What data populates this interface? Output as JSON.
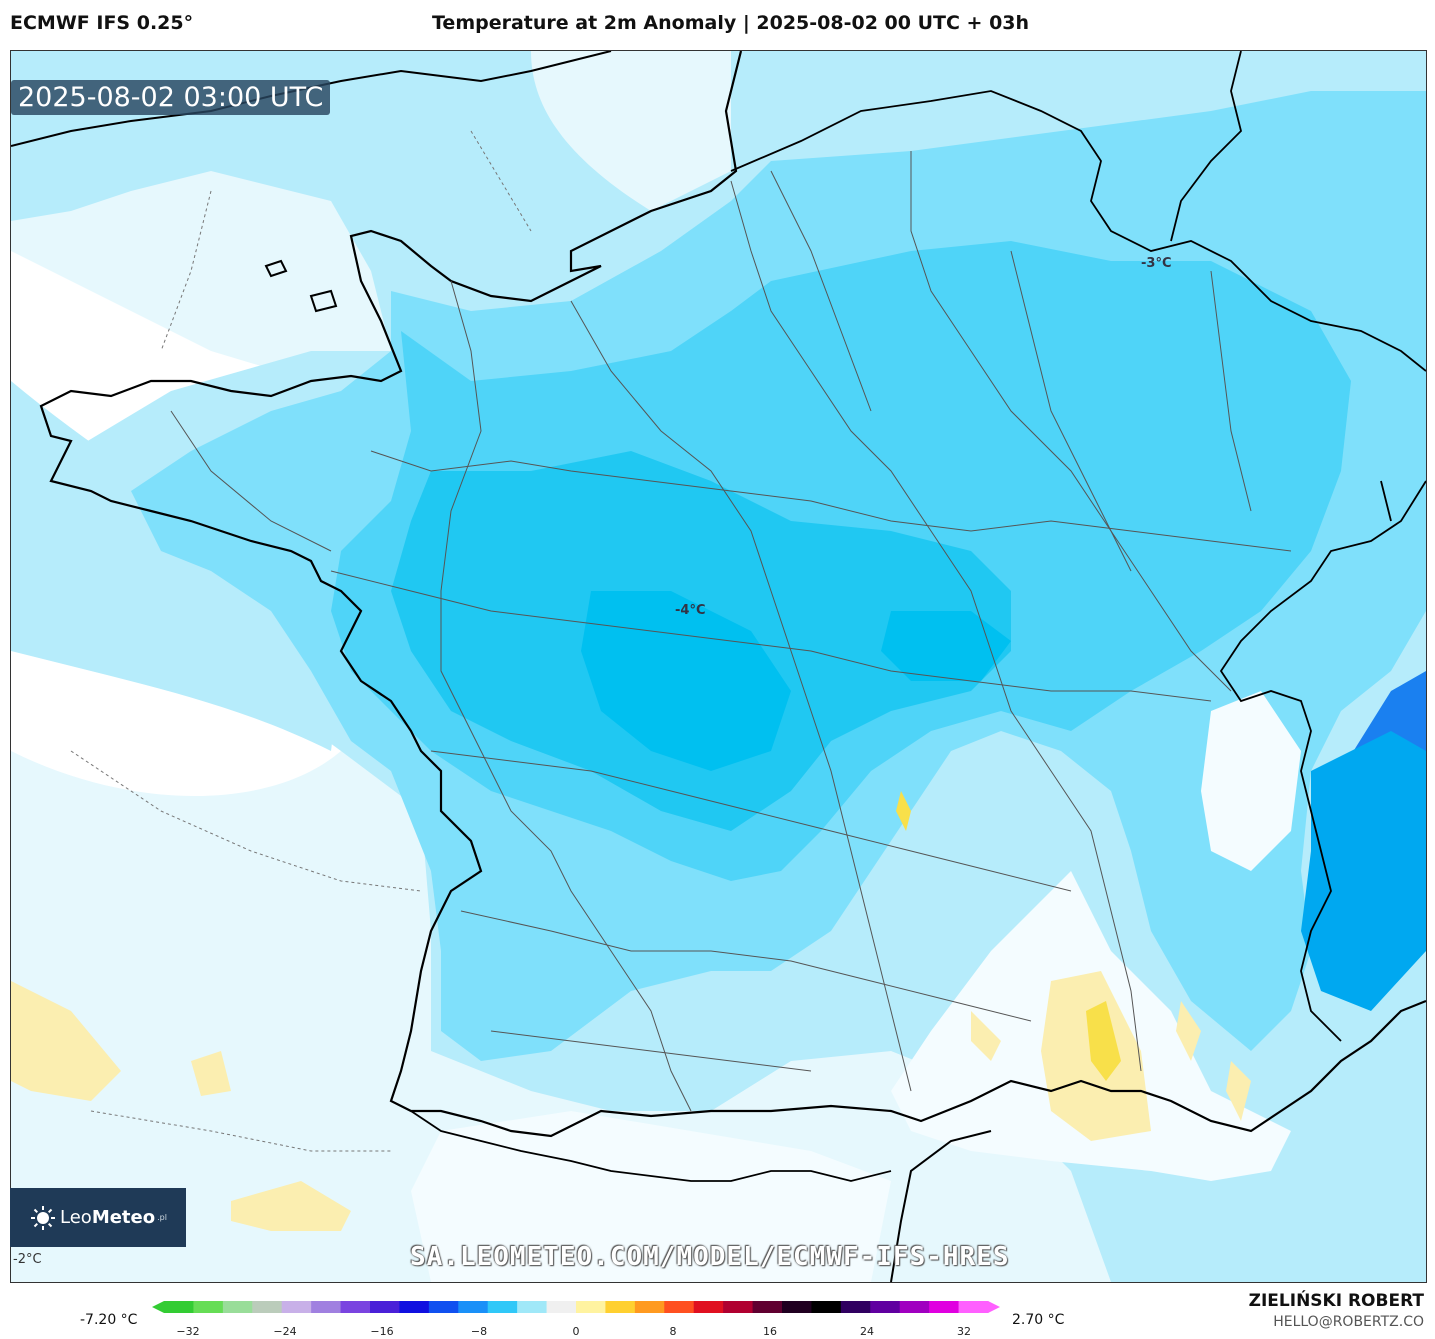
{
  "header": {
    "model": "ECMWF IFS 0.25°",
    "title": "Temperature at 2m Anomaly | 2025-08-02 00 UTC + 03h"
  },
  "map": {
    "timestamp": "2025-08-02 03:00 UTC",
    "contour_labels": [
      "-4°C",
      "-3°C"
    ],
    "corner_label": "-2°C",
    "watermark": "SA.LEOMETEO.COM/MODEL/ECMWF-IFS-HRES",
    "region": "France",
    "colors": {
      "ocean_light": "#e6f8fd",
      "anomaly_-1": "#b6ecfb",
      "anomaly_-2": "#7fe0fb",
      "anomaly_-3": "#4fd4f8",
      "anomaly_-4": "#20c8f2",
      "anomaly_-5": "#00b6ee",
      "anomaly_-6": "#1a80f0",
      "anomaly_pos": "#fbeeb0",
      "anomaly_pos_strong": "#f8e04a"
    }
  },
  "logo": {
    "brand_light": "Leo",
    "brand_bold": "Meteo",
    "suffix": ".pl"
  },
  "legend": {
    "min_label": "-7.20 °C",
    "max_label": "2.70 °C",
    "ticks": [
      "−32",
      "−24",
      "−16",
      "−8",
      "0",
      "8",
      "16",
      "24",
      "32"
    ],
    "colors": [
      "#33cc33",
      "#66dd55",
      "#99dd99",
      "#bbccbb",
      "#c8b0e8",
      "#a080e0",
      "#7a44e0",
      "#4a20d8",
      "#1010e0",
      "#1050f0",
      "#1a90f8",
      "#30c8f8",
      "#a0e8f8",
      "#f0f0f0",
      "#fff3a0",
      "#ffd030",
      "#ff9a20",
      "#ff5020",
      "#e01020",
      "#b00030",
      "#600030",
      "#200020",
      "#000000",
      "#300060",
      "#6000a0",
      "#a000c0",
      "#e000e0",
      "#ff60ff"
    ]
  },
  "author": {
    "name": "ZIELIŃSKI ROBERT",
    "email": "HELLO@ROBERTZ.CO"
  }
}
